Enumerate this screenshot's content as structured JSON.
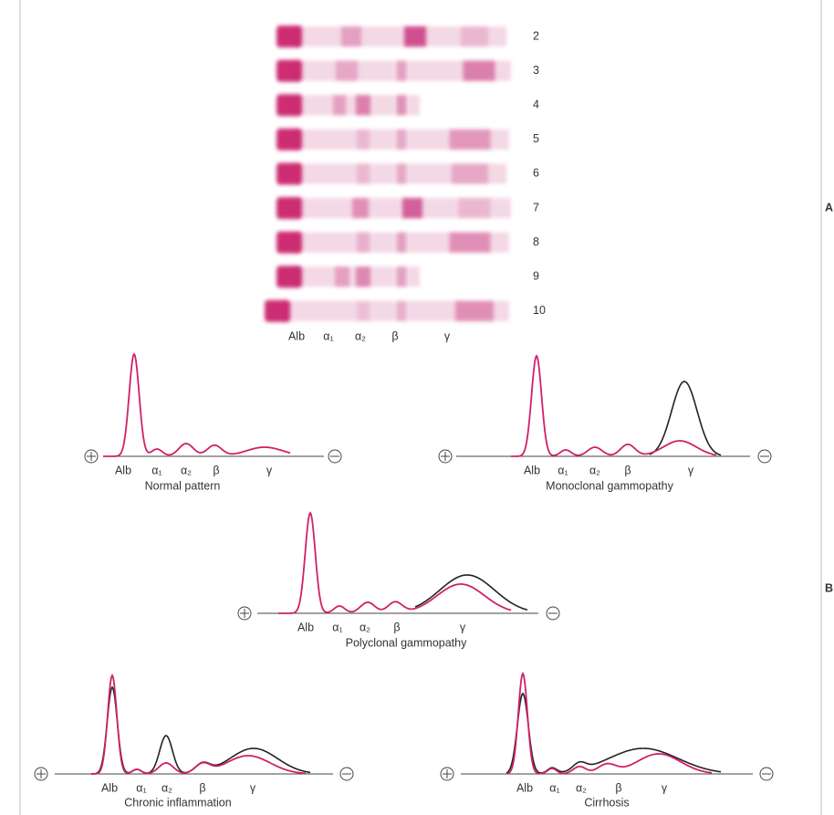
{
  "panel_labels": {
    "a": "A",
    "b": "B"
  },
  "gel": {
    "lanes": [
      2,
      3,
      4,
      5,
      6,
      7,
      8,
      9,
      10
    ],
    "fraction_labels": [
      "Alb",
      "α₁",
      "α₂",
      "β",
      "γ"
    ]
  },
  "patterns": [
    {
      "title": "Normal pattern",
      "fraction_labels": [
        "Alb",
        "α₁",
        "α₂",
        "β",
        "γ"
      ]
    },
    {
      "title": "Monoclonal gammopathy",
      "fraction_labels": [
        "Alb",
        "α₁",
        "α₂",
        "β",
        "γ"
      ]
    },
    {
      "title": "Polyclonal gammopathy",
      "fraction_labels": [
        "Alb",
        "α₁",
        "α₂",
        "β",
        "γ"
      ]
    },
    {
      "title": "Chronic inflammation",
      "fraction_labels": [
        "Alb",
        "α₁",
        "α₂",
        "β",
        "γ"
      ]
    },
    {
      "title": "Cirrhosis",
      "fraction_labels": [
        "Alb",
        "α₁",
        "α₂",
        "β",
        "γ"
      ]
    }
  ]
}
